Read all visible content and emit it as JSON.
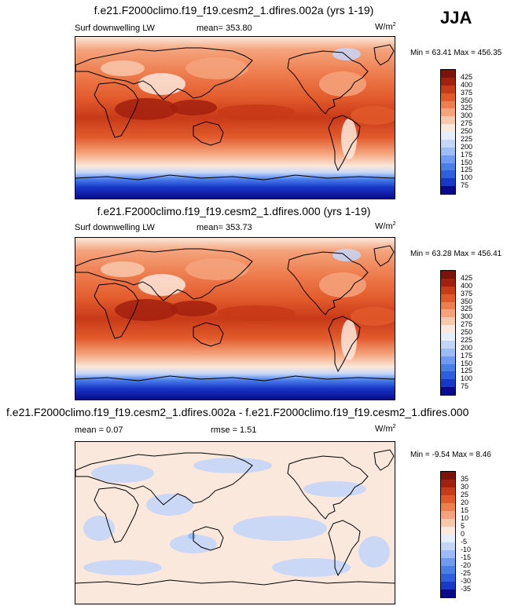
{
  "season": "JJA",
  "panels": [
    {
      "title": "f.e21.F2000climo.f19_f19.cesm2_1.dfires.002a (yrs 1-19)",
      "variable": "Surf downwelling LW",
      "stat1": "mean= 353.80",
      "stat2": "",
      "units": "W/m",
      "units_sup": "2",
      "minmax": "Min = 63.41 Max = 456.35"
    },
    {
      "title": "f.e21.F2000climo.f19_f19.cesm2_1.dfires.000 (yrs 1-19)",
      "variable": "Surf downwelling LW",
      "stat1": "mean= 353.73",
      "stat2": "",
      "units": "W/m",
      "units_sup": "2",
      "minmax": "Min = 63.28 Max = 456.41"
    },
    {
      "title": "f.e21.F2000climo.f19_f19.cesm2_1.dfires.002a - f.e21.F2000climo.f19_f19.cesm2_1.dfires.000",
      "variable": "",
      "stat1": "mean = 0.07",
      "stat2": "rmse = 1.51",
      "units": "W/m",
      "units_sup": "2",
      "minmax": "Min = -9.54 Max = 8.46"
    }
  ],
  "chart_data": [
    {
      "type": "heatmap",
      "title": "f.e21.F2000climo.f19_f19.cesm2_1.dfires.002a (yrs 1-19)",
      "subtitle": "Surf downwelling LW",
      "mean": 353.8,
      "min": 63.41,
      "max": 456.35,
      "units": "W/m2",
      "colorbar_levels": [
        75,
        100,
        125,
        150,
        175,
        200,
        225,
        250,
        275,
        300,
        325,
        350,
        375,
        400,
        425
      ],
      "colors": [
        "#0a0a8c",
        "#1838c8",
        "#2f5fe0",
        "#4a7fea",
        "#6f9cf0",
        "#9bbcf5",
        "#c4d6f8",
        "#e6eefa",
        "#fbe8dc",
        "#f8c8ac",
        "#f4a37c",
        "#ee7e50",
        "#e25a2c",
        "#c83a18",
        "#a3200e",
        "#7a1408"
      ]
    },
    {
      "type": "heatmap",
      "title": "f.e21.F2000climo.f19_f19.cesm2_1.dfires.000 (yrs 1-19)",
      "subtitle": "Surf downwelling LW",
      "mean": 353.73,
      "min": 63.28,
      "max": 456.41,
      "units": "W/m2",
      "colorbar_levels": [
        75,
        100,
        125,
        150,
        175,
        200,
        225,
        250,
        275,
        300,
        325,
        350,
        375,
        400,
        425
      ],
      "colors": [
        "#0a0a8c",
        "#1838c8",
        "#2f5fe0",
        "#4a7fea",
        "#6f9cf0",
        "#9bbcf5",
        "#c4d6f8",
        "#e6eefa",
        "#fbe8dc",
        "#f8c8ac",
        "#f4a37c",
        "#ee7e50",
        "#e25a2c",
        "#c83a18",
        "#a3200e",
        "#7a1408"
      ]
    },
    {
      "type": "heatmap",
      "title": "f.e21.F2000climo.f19_f19.cesm2_1.dfires.002a - f.e21.F2000climo.f19_f19.cesm2_1.dfires.000",
      "mean": 0.07,
      "rmse": 1.51,
      "min": -9.54,
      "max": 8.46,
      "units": "W/m2",
      "colorbar_levels": [
        -35,
        -30,
        -25,
        -20,
        -15,
        -10,
        -5,
        0,
        5,
        10,
        15,
        20,
        25,
        30,
        35
      ],
      "colors": [
        "#0a0a8c",
        "#1838c8",
        "#2f5fe0",
        "#4a7fea",
        "#6f9cf0",
        "#9bbcf5",
        "#c4d6f8",
        "#e6eefa",
        "#fbe8dc",
        "#f8c8ac",
        "#f4a37c",
        "#ee7e50",
        "#e25a2c",
        "#c83a18",
        "#a3200e",
        "#7a1408"
      ]
    }
  ]
}
